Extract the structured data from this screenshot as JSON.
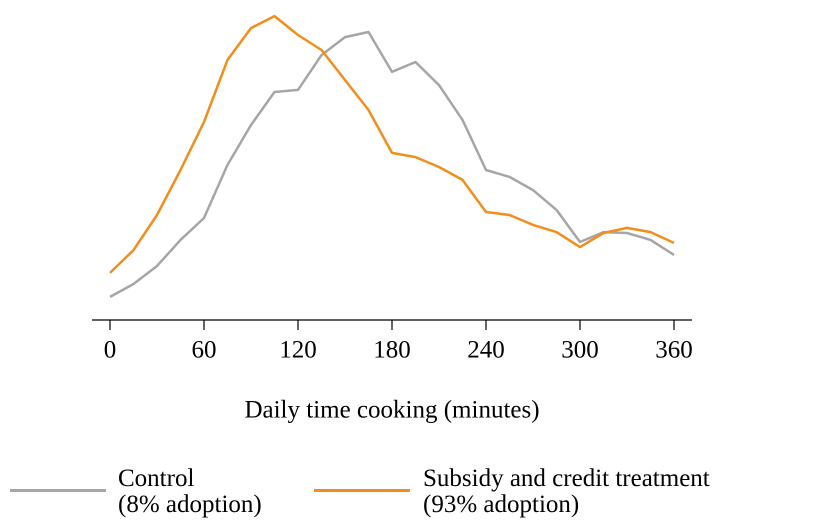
{
  "chart_data": {
    "type": "line",
    "xlabel": "Daily time cooking (minutes)",
    "x": [
      0,
      15,
      30,
      45,
      60,
      75,
      90,
      105,
      120,
      135,
      150,
      165,
      180,
      195,
      210,
      225,
      240,
      255,
      270,
      285,
      300,
      315,
      330,
      345,
      360
    ],
    "series": [
      {
        "name": "Control\n(8% adoption)",
        "color": "#a6a6a6",
        "values": [
          0.077,
          0.12,
          0.18,
          0.267,
          0.34,
          0.517,
          0.65,
          0.76,
          0.767,
          0.883,
          0.943,
          0.96,
          0.827,
          0.86,
          0.783,
          0.667,
          0.5,
          0.477,
          0.433,
          0.367,
          0.26,
          0.293,
          0.29,
          0.267,
          0.217
        ]
      },
      {
        "name": "Subsidy and credit treatment\n(93% adoption)",
        "color": "#f28e1c",
        "values": [
          0.157,
          0.233,
          0.35,
          0.5,
          0.66,
          0.867,
          0.973,
          1.013,
          0.95,
          0.9,
          0.8,
          0.7,
          0.557,
          0.543,
          0.51,
          0.467,
          0.36,
          0.35,
          0.317,
          0.293,
          0.243,
          0.29,
          0.307,
          0.293,
          0.257
        ]
      }
    ],
    "xlim": [
      0,
      360
    ],
    "xticks": [
      0,
      60,
      120,
      180,
      240,
      300,
      360
    ],
    "ylim": [
      0,
      1.1
    ]
  }
}
